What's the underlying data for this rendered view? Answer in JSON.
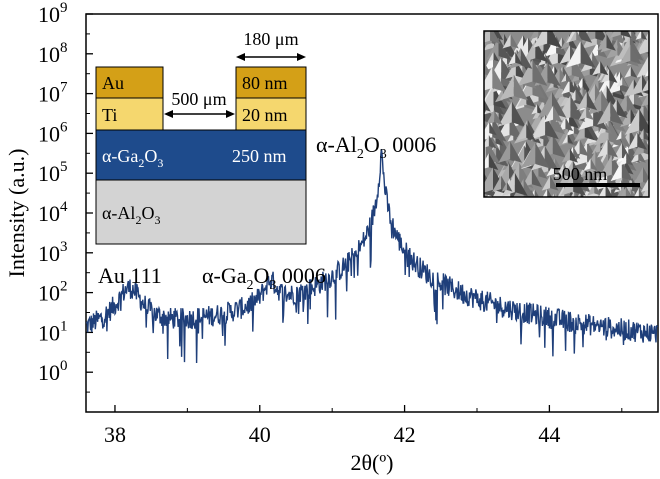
{
  "chart_data": {
    "type": "line",
    "xlabel": "2θ(º)",
    "ylabel": "Intensity (a.u.)",
    "xlim": [
      37.6,
      45.5
    ],
    "ylim_log10": [
      -1.0,
      9.0
    ],
    "y_scale": "log",
    "x_ticks": [
      38,
      40,
      42,
      44
    ],
    "x_tick_labels": [
      "38",
      "40",
      "42",
      "44"
    ],
    "y_ticks": [
      {
        "base": "10",
        "exp": "9",
        "log": 9
      },
      {
        "base": "10",
        "exp": "8",
        "log": 8
      },
      {
        "base": "10",
        "exp": "7",
        "log": 7
      },
      {
        "base": "10",
        "exp": "6",
        "log": 6
      },
      {
        "base": "10",
        "exp": "5",
        "log": 5
      },
      {
        "base": "10",
        "exp": "4",
        "log": 4
      },
      {
        "base": "10",
        "exp": "3",
        "log": 3
      },
      {
        "base": "10",
        "exp": "2",
        "log": 2
      },
      {
        "base": "10",
        "exp": "1",
        "log": 1
      },
      {
        "base": "10",
        "exp": "0",
        "log": 0
      }
    ],
    "line_color": "#1f3f7a",
    "noise_floor": 1.0,
    "peaks": [
      {
        "center": 38.2,
        "height": 120,
        "hwhm": 0.14
      },
      {
        "center": 40.15,
        "height": 150,
        "hwhm": 0.085
      },
      {
        "center": 41.68,
        "height": 300000,
        "hwhm": 0.02
      }
    ],
    "annotations": {
      "au111": "Au 111",
      "ga2o3_pre": "α-Ga",
      "ga2o3_sub1": "2",
      "ga2o3_mid": "O",
      "ga2o3_sub2": "3",
      "ga2o3_post": " 0006",
      "al2o3_pre": "α-Al",
      "al2o3_sub1": "2",
      "al2o3_mid": "O",
      "al2o3_sub2": "3",
      "al2o3_post": " 0006"
    }
  },
  "inset_schematic": {
    "au": "Au",
    "ti": "Ti",
    "au_thickness": "80 nm",
    "ti_thickness": "20 nm",
    "gap": "500 μm",
    "pad_width": "180 μm",
    "ga2o3_pre": "α-Ga",
    "ga2o3_sub1": "2",
    "ga2o3_mid": "O",
    "ga2o3_sub2": "3",
    "ga2o3_thickness": "250 nm",
    "al2o3_pre": "α-Al",
    "al2o3_sub1": "2",
    "al2o3_mid": "O",
    "al2o3_sub2": "3",
    "colors": {
      "au": "#d4a017",
      "ti": "#f5d76e",
      "ga2o3": "#1e4b8c",
      "al2o3": "#d3d3d3"
    }
  },
  "inset_sem": {
    "scale_bar": "500 nm"
  }
}
